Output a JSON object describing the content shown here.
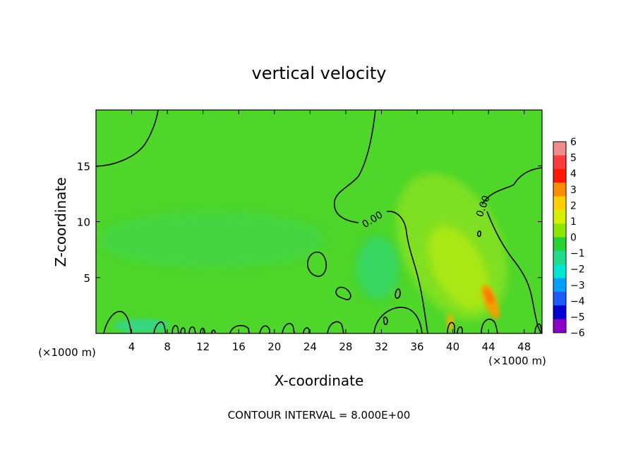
{
  "chart_data": {
    "type": "heatmap",
    "title": "vertical velocity",
    "xlabel": "X-coordinate",
    "ylabel": "Z-coordinate",
    "x_unit": "(×1000 m)",
    "x_unit_right": "(×1000 m)",
    "xlim": [
      0,
      50
    ],
    "ylim": [
      0,
      20
    ],
    "x_ticks": [
      4,
      8,
      12,
      16,
      20,
      24,
      28,
      32,
      36,
      40,
      44,
      48
    ],
    "y_ticks": [
      5,
      10,
      15
    ],
    "colorbar": {
      "levels": [
        6,
        5,
        4,
        3,
        2,
        1,
        0,
        -1,
        -2,
        -3,
        -4,
        -5,
        -6
      ],
      "labels": [
        "6",
        "5",
        "4",
        "3",
        "2",
        "1",
        "0",
        "−1",
        "−2",
        "−3",
        "−4",
        "−5",
        "−6"
      ],
      "colors": [
        "#f08c8c",
        "#ff3b3b",
        "#ff1a00",
        "#ff8c00",
        "#ffd000",
        "#d7f000",
        "#8ce600",
        "#28d232",
        "#1edc8c",
        "#00e6d2",
        "#00a0ff",
        "#1e5aff",
        "#0000d2",
        "#8c00c8"
      ]
    },
    "contour_labels": [
      "0.00",
      "0.00"
    ],
    "annotation": "CONTOUR INTERVAL = 8.000E+00",
    "background_color": "#4ed62a",
    "grid": false
  }
}
